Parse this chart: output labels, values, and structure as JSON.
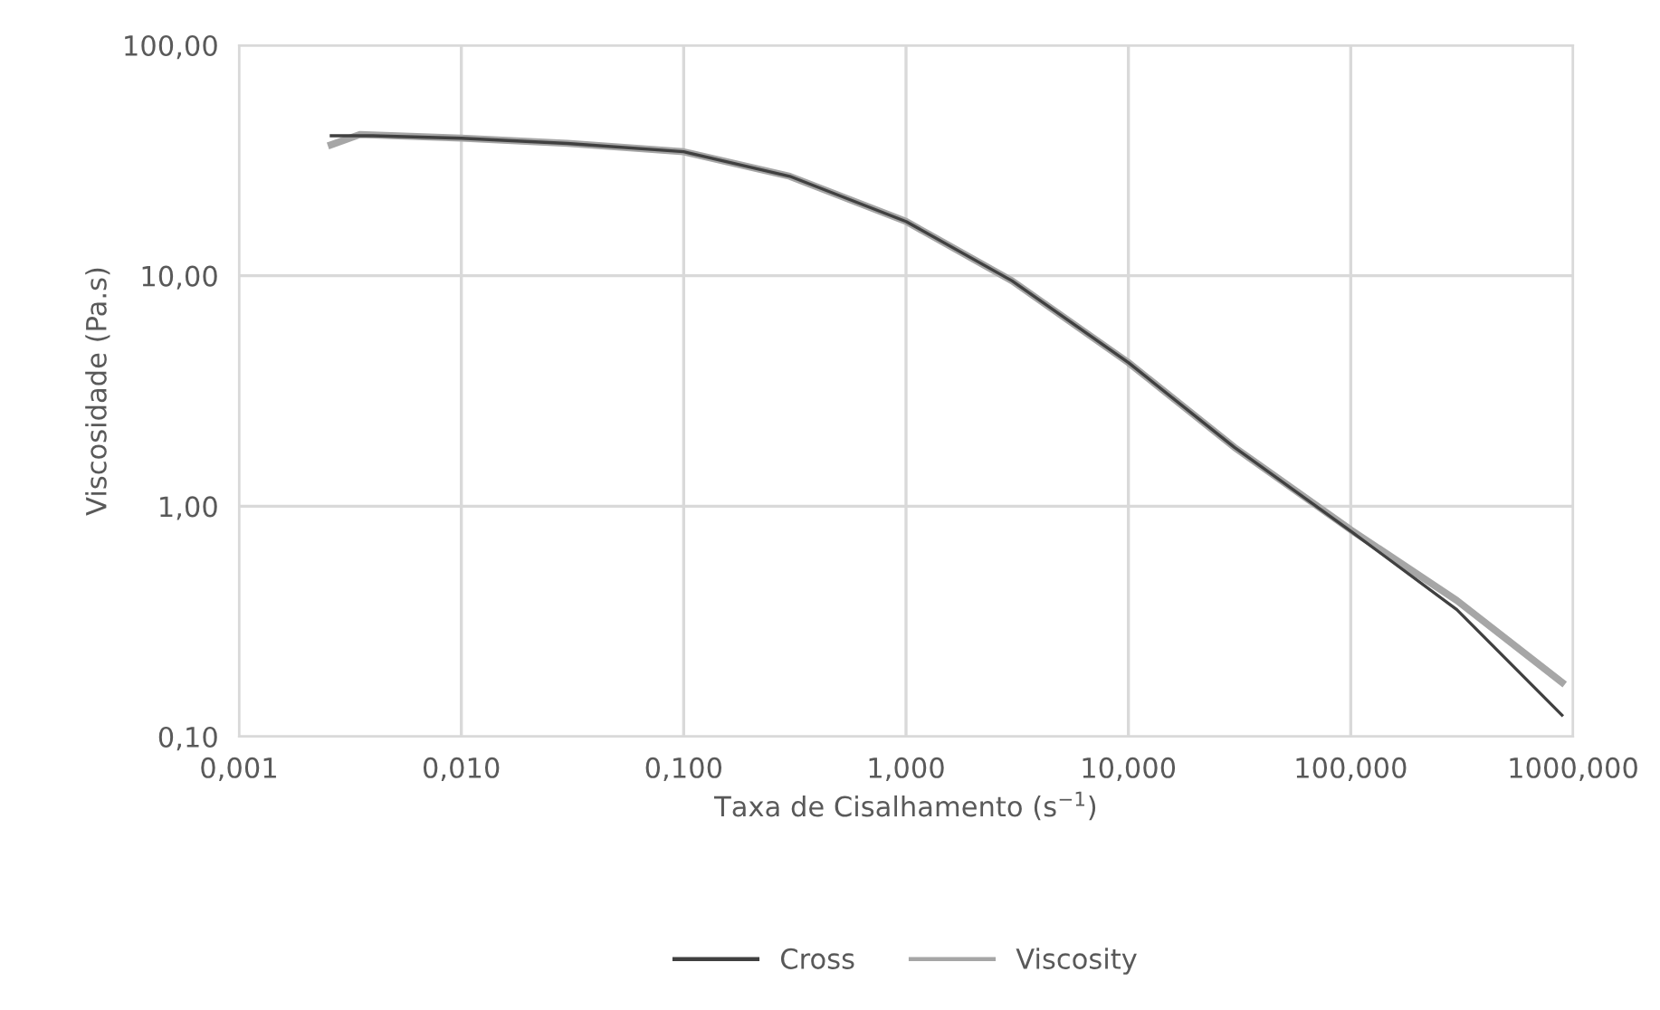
{
  "chart_data": {
    "type": "line",
    "xlabel": "Taxa de Cisalhamento (s$^{−1}$)",
    "ylabel": "Viscosidade (Pa.s)",
    "log": "xy",
    "grid": true,
    "legend": "bottom",
    "line_style": "solid",
    "marker": "none",
    "xlim": [
      0.001,
      1000
    ],
    "ylim": [
      0.1,
      100
    ],
    "xticks": [
      {
        "value": 0.001,
        "label": "0,001"
      },
      {
        "value": 0.01,
        "label": "0,010"
      },
      {
        "value": 0.1,
        "label": "0,100"
      },
      {
        "value": 1,
        "label": "1,000"
      },
      {
        "value": 10,
        "label": "10,000"
      },
      {
        "value": 100,
        "label": "100,000"
      },
      {
        "value": 1000,
        "label": "1000,000"
      }
    ],
    "yticks": [
      {
        "value": 0.1,
        "label": "0,10"
      },
      {
        "value": 1,
        "label": "1,00"
      },
      {
        "value": 10,
        "label": "10,00"
      },
      {
        "value": 100,
        "label": "100,00"
      }
    ],
    "series": [
      {
        "name": "Cross",
        "color": "#404040",
        "x": [
          0.0026,
          0.004,
          0.01,
          0.03,
          0.1,
          0.3,
          1,
          3,
          10,
          30,
          100,
          300,
          891
        ],
        "values": [
          40.5,
          40.5,
          39.5,
          37.5,
          34.5,
          27,
          17.2,
          9.5,
          4.2,
          1.8,
          0.78,
          0.356,
          0.124
        ]
      },
      {
        "name": "Viscosity",
        "color": "#a6a6a6",
        "x": [
          0.0026,
          0.0035,
          0.01,
          0.03,
          0.1,
          0.3,
          1,
          3,
          10,
          30,
          100,
          300,
          891
        ],
        "values": [
          37,
          41,
          39.5,
          37.5,
          34.5,
          27,
          17.2,
          9.5,
          4.2,
          1.8,
          0.79,
          0.39,
          0.172
        ]
      }
    ]
  }
}
